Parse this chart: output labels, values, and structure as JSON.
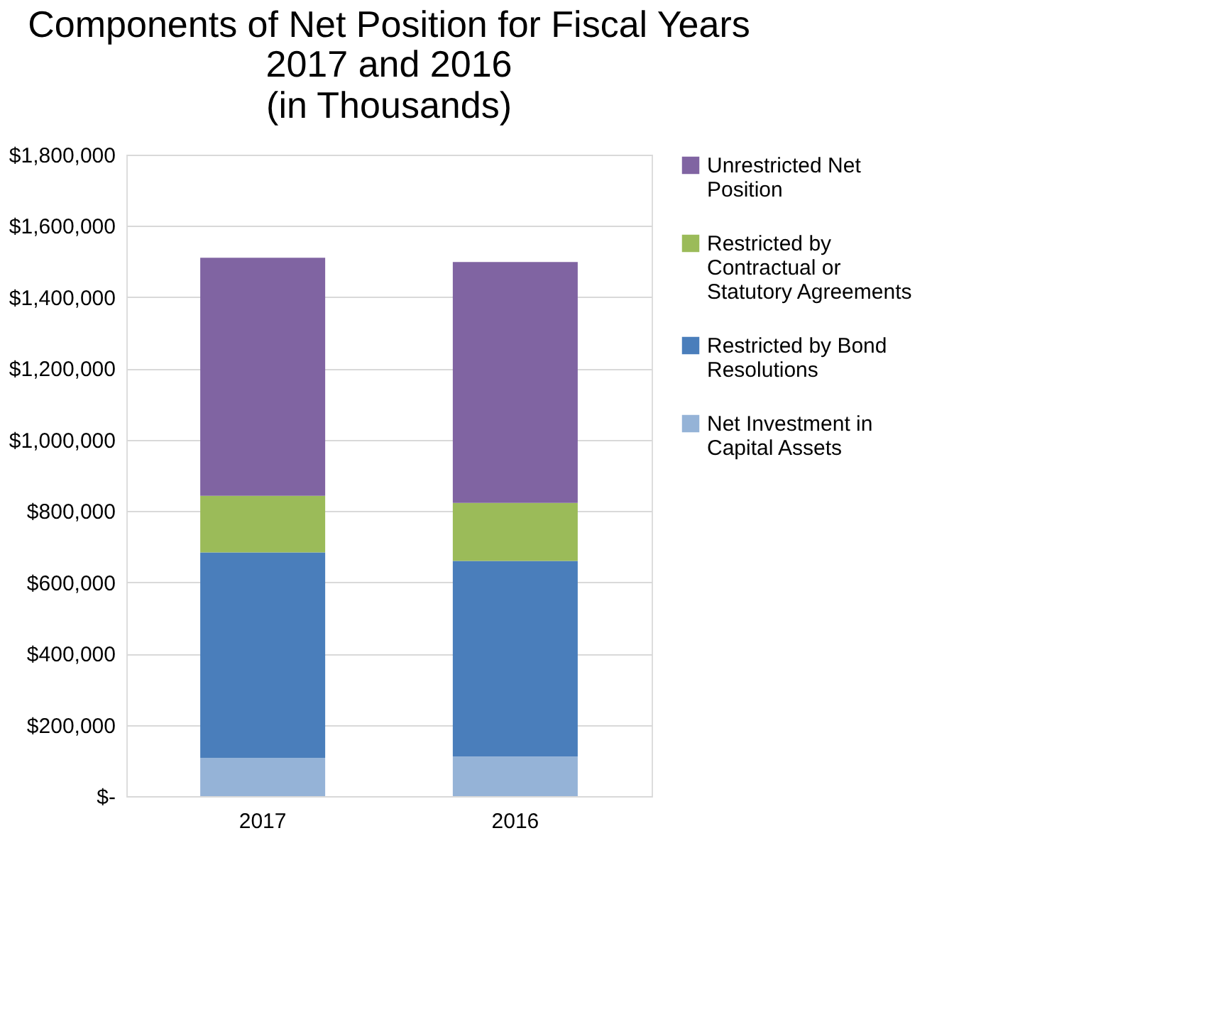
{
  "chart_data": {
    "type": "bar",
    "title": "Components of Net Position for Fiscal Years 2017 and 2016",
    "subtitle": "(in Thousands)",
    "categories": [
      "2017",
      "2016"
    ],
    "stacked": true,
    "series": [
      {
        "name": "Net Investment in Capital Assets",
        "color": "#95b3d7",
        "values": [
          107000,
          111000
        ]
      },
      {
        "name": "Restricted by Bond Resolutions",
        "color": "#4a7ebb",
        "values": [
          577000,
          549000
        ]
      },
      {
        "name": "Restricted by Contractual or Statutory Agreements",
        "color": "#9bbb59",
        "values": [
          159000,
          163000
        ]
      },
      {
        "name": "Unrestricted Net Position",
        "color": "#8064a2",
        "values": [
          668000,
          676000
        ]
      }
    ],
    "ylim": [
      0,
      1800000
    ],
    "yticks": [
      {
        "value": 0,
        "label": "$-"
      },
      {
        "value": 200000,
        "label": "$200,000"
      },
      {
        "value": 400000,
        "label": "$400,000"
      },
      {
        "value": 600000,
        "label": "$600,000"
      },
      {
        "value": 800000,
        "label": "$800,000"
      },
      {
        "value": 1000000,
        "label": "$1,000,000"
      },
      {
        "value": 1200000,
        "label": "$1,200,000"
      },
      {
        "value": 1400000,
        "label": "$1,400,000"
      },
      {
        "value": 1600000,
        "label": "$1,600,000"
      },
      {
        "value": 1800000,
        "label": "$1,800,000"
      }
    ],
    "grid": "y",
    "legend": "right"
  }
}
